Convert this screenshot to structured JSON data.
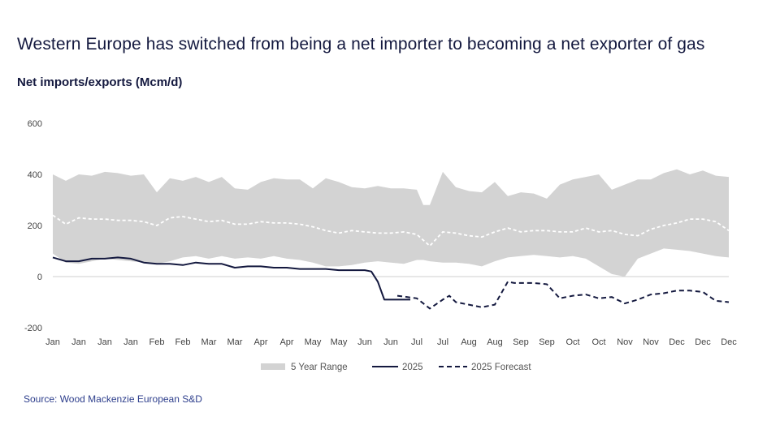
{
  "header": {
    "title": "Western Europe has switched from being a net importer to becoming a net exporter of gas",
    "subtitle": "Net imports/exports (Mcm/d)"
  },
  "footer": {
    "source": "Source: Wood Mackenzie European S&D"
  },
  "colors": {
    "range_fill": "#d3d3d3",
    "avg_line": "#ffffff",
    "actual_line": "#14193f",
    "forecast_line": "#14193f",
    "zero_line": "#cfcfcf",
    "title": "#14193f",
    "source": "#2d3e8c"
  },
  "chart_data": {
    "type": "area",
    "grid": false,
    "legend_position": "bottom",
    "ylim": [
      -200,
      600
    ],
    "yticks": [
      -200,
      0,
      200,
      400,
      600
    ],
    "y_tick_labels": [
      "-200",
      "0",
      "200",
      "400",
      "600"
    ],
    "xlim": [
      0,
      52
    ],
    "x_tick_labels": [
      "Jan",
      "Jan",
      "Jan",
      "Jan",
      "Feb",
      "Feb",
      "Mar",
      "Mar",
      "Apr",
      "Apr",
      "May",
      "May",
      "Jun",
      "Jun",
      "Jul",
      "Jul",
      "Aug",
      "Aug",
      "Sep",
      "Sep",
      "Oct",
      "Oct",
      "Nov",
      "Nov",
      "Dec",
      "Dec",
      "Dec"
    ],
    "x_tick_positions": [
      0,
      2,
      4,
      6,
      8,
      10,
      12,
      14,
      16,
      18,
      20,
      22,
      24,
      26,
      28,
      30,
      32,
      34,
      36,
      38,
      40,
      42,
      44,
      46,
      48,
      50,
      52
    ],
    "series": [
      {
        "name": "5 Year Range",
        "kind": "band",
        "x": [
          0,
          1,
          2,
          3,
          4,
          5,
          6,
          7,
          8,
          9,
          10,
          11,
          12,
          13,
          14,
          15,
          16,
          17,
          18,
          19,
          20,
          21,
          22,
          23,
          24,
          25,
          26,
          27,
          28,
          28.5,
          29,
          30,
          31,
          32,
          33,
          34,
          35,
          36,
          37,
          38,
          39,
          40,
          41,
          42,
          43,
          44,
          45,
          46,
          47,
          48,
          49,
          50,
          51,
          52
        ],
        "upper": [
          400,
          375,
          400,
          395,
          410,
          405,
          395,
          400,
          330,
          385,
          375,
          390,
          370,
          390,
          345,
          340,
          370,
          385,
          380,
          380,
          345,
          385,
          370,
          350,
          345,
          355,
          345,
          345,
          340,
          280,
          280,
          410,
          350,
          335,
          330,
          370,
          315,
          330,
          325,
          305,
          360,
          380,
          390,
          400,
          340,
          360,
          380,
          380,
          405,
          420,
          400,
          415,
          395,
          390
        ],
        "lower": [
          90,
          55,
          50,
          60,
          70,
          65,
          60,
          55,
          50,
          60,
          75,
          80,
          70,
          80,
          70,
          75,
          70,
          80,
          70,
          65,
          55,
          40,
          40,
          45,
          55,
          60,
          55,
          50,
          65,
          65,
          60,
          55,
          55,
          50,
          40,
          60,
          75,
          80,
          85,
          80,
          75,
          80,
          70,
          40,
          10,
          0,
          70,
          90,
          110,
          105,
          100,
          90,
          80,
          75
        ]
      },
      {
        "name": "",
        "kind": "average",
        "x": [
          0,
          1,
          2,
          3,
          4,
          5,
          6,
          7,
          8,
          9,
          10,
          11,
          12,
          13,
          14,
          15,
          16,
          17,
          18,
          19,
          20,
          21,
          22,
          23,
          24,
          25,
          26,
          27,
          28,
          29,
          30,
          31,
          32,
          33,
          34,
          35,
          36,
          37,
          38,
          39,
          40,
          41,
          42,
          43,
          44,
          45,
          46,
          47,
          48,
          49,
          50,
          51,
          52
        ],
        "values": [
          240,
          205,
          230,
          225,
          225,
          220,
          220,
          215,
          200,
          230,
          235,
          225,
          215,
          220,
          205,
          205,
          215,
          210,
          210,
          205,
          195,
          180,
          170,
          180,
          175,
          170,
          170,
          175,
          165,
          120,
          175,
          170,
          160,
          155,
          175,
          190,
          175,
          180,
          180,
          175,
          175,
          190,
          175,
          180,
          165,
          160,
          185,
          200,
          210,
          225,
          225,
          215,
          180
        ]
      },
      {
        "name": "2025",
        "kind": "line",
        "x": [
          0,
          1,
          2,
          3,
          4,
          5,
          6,
          7,
          8,
          9,
          10,
          11,
          12,
          13,
          14,
          15,
          16,
          17,
          18,
          19,
          20,
          21,
          22,
          23,
          24,
          24.5,
          25,
          25.5,
          26,
          27,
          27.5
        ],
        "values": [
          75,
          60,
          60,
          70,
          70,
          75,
          70,
          55,
          50,
          50,
          45,
          55,
          50,
          50,
          35,
          40,
          40,
          35,
          35,
          30,
          30,
          30,
          25,
          25,
          25,
          20,
          -20,
          -90,
          -90,
          -90,
          -90
        ]
      },
      {
        "name": "2025 Forecast",
        "kind": "dashed",
        "x": [
          26.5,
          28,
          29,
          30,
          30.5,
          31,
          32,
          33,
          34,
          35,
          35.5,
          36,
          37,
          38,
          39,
          40,
          41,
          42,
          43,
          44,
          45,
          46,
          47,
          48,
          49,
          50,
          51,
          52
        ],
        "values": [
          -75,
          -85,
          -125,
          -90,
          -75,
          -100,
          -110,
          -120,
          -110,
          -20,
          -25,
          -25,
          -25,
          -30,
          -85,
          -75,
          -70,
          -85,
          -80,
          -105,
          -90,
          -70,
          -65,
          -55,
          -55,
          -60,
          -95,
          -100
        ]
      }
    ]
  },
  "legend": {
    "items": [
      {
        "label": "5 Year Range",
        "icon": "gray-band"
      },
      {
        "label": "2025",
        "icon": "solid-line"
      },
      {
        "label": "2025 Forecast",
        "icon": "dashed-line"
      }
    ]
  }
}
